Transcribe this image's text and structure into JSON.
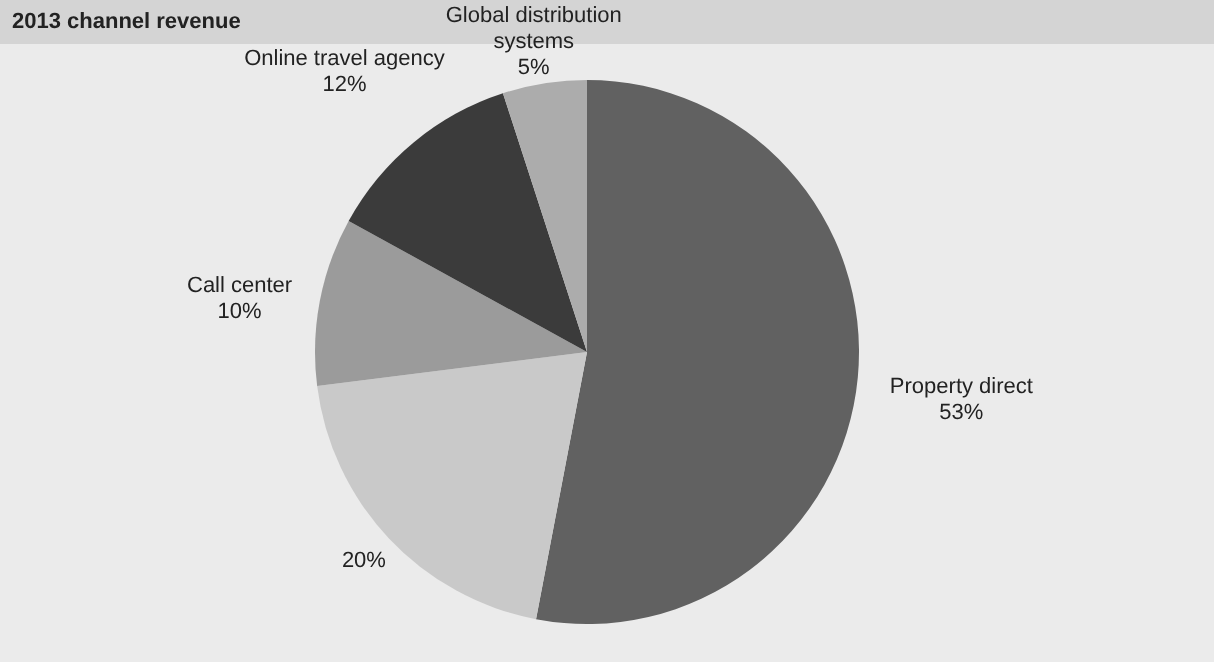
{
  "chart_data": {
    "type": "pie",
    "title": "2013 channel revenue",
    "categories": [
      "Property direct",
      null,
      "Call center",
      "Online travel agency",
      "Global distribution systems"
    ],
    "values": [
      53,
      20,
      10,
      12,
      5
    ],
    "value_labels": [
      "53%",
      "20%",
      "10%",
      "12%",
      "5%"
    ],
    "colors": [
      "#616161",
      "#c9c9c9",
      "#9b9b9b",
      "#3b3b3b",
      "#acacac"
    ],
    "legend": false
  }
}
